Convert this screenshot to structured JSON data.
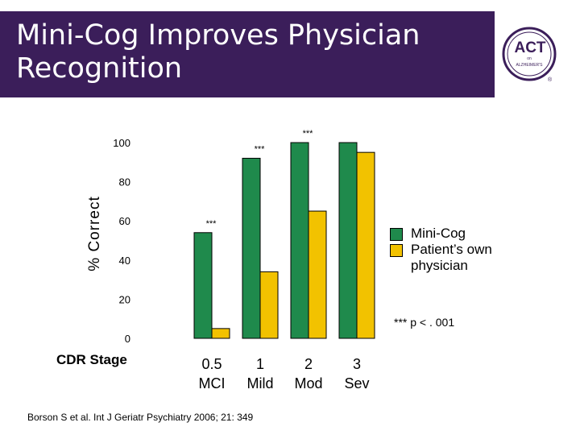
{
  "header": {
    "title_word1": "Mini-Cog",
    "title_rest": " Improves Physician Recognition",
    "bg_color": "#3b1e5a"
  },
  "logo": {
    "line1": "ACT",
    "line2": "on",
    "line3": "ALZHEIMER'S",
    "mark": "®"
  },
  "chart_data": {
    "type": "bar",
    "categories": [
      [
        "0.5",
        "MCI"
      ],
      [
        "1",
        "Mild"
      ],
      [
        "2",
        "Mod"
      ],
      [
        "3",
        "Sev"
      ]
    ],
    "series": [
      {
        "name": "Mini-Cog",
        "values": [
          54,
          92,
          100,
          100
        ],
        "color": "#1f8a4c"
      },
      {
        "name": "Patient’s own physician",
        "values": [
          5,
          34,
          65,
          95
        ],
        "color": "#f2c200"
      }
    ],
    "significance": [
      "***",
      "***",
      "***",
      ""
    ],
    "ylabel": "% Correct",
    "xlabel": "CDR Stage",
    "yticks": [
      0,
      20,
      40,
      60,
      80,
      100
    ],
    "ylim": [
      0,
      100
    ],
    "legend_position": "right",
    "footnote": "*** p < . 001"
  },
  "citation": "Borson S et al. Int J Geriatr Psychiatry 2006; 21: 349"
}
